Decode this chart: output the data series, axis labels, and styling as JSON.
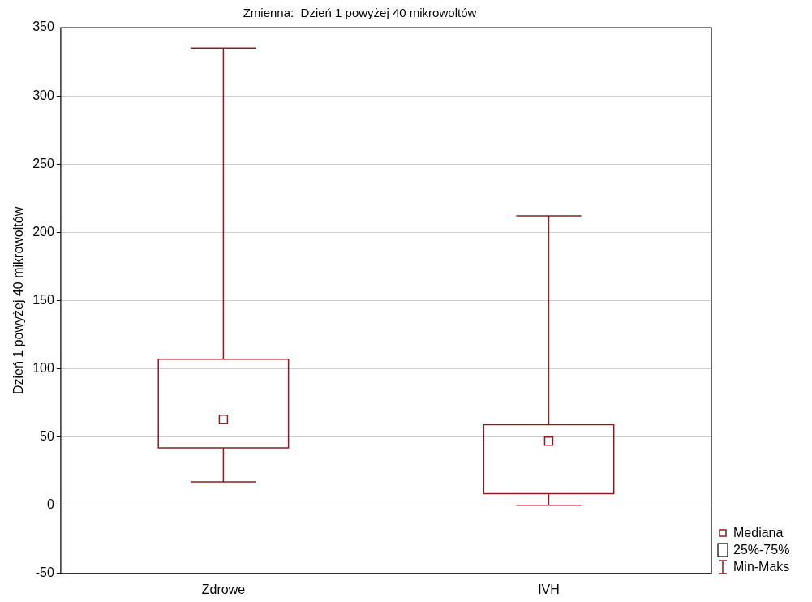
{
  "chart_data": {
    "type": "box",
    "title": "Zmienna:  Dzień 1 powyżej 40 mikrowoltów",
    "ylabel": "Dzień 1 powyżej 40 mikrowoltów",
    "categories": [
      "Zdrowe",
      "IVH"
    ],
    "color": "#8b1c24",
    "boxes": [
      {
        "low": 17,
        "q1": 42,
        "median": 63,
        "q3": 107,
        "high": 335
      },
      {
        "low": 0,
        "q1": 8.5,
        "median": 47,
        "q3": 59,
        "high": 212
      }
    ],
    "ylim": [
      -50,
      350
    ],
    "yticks": [
      -50,
      0,
      50,
      100,
      150,
      200,
      250,
      300,
      350
    ],
    "grid": "y",
    "marker": "square",
    "annotations": [
      "Mediana",
      "25%-75%",
      "Min-Maks"
    ]
  }
}
